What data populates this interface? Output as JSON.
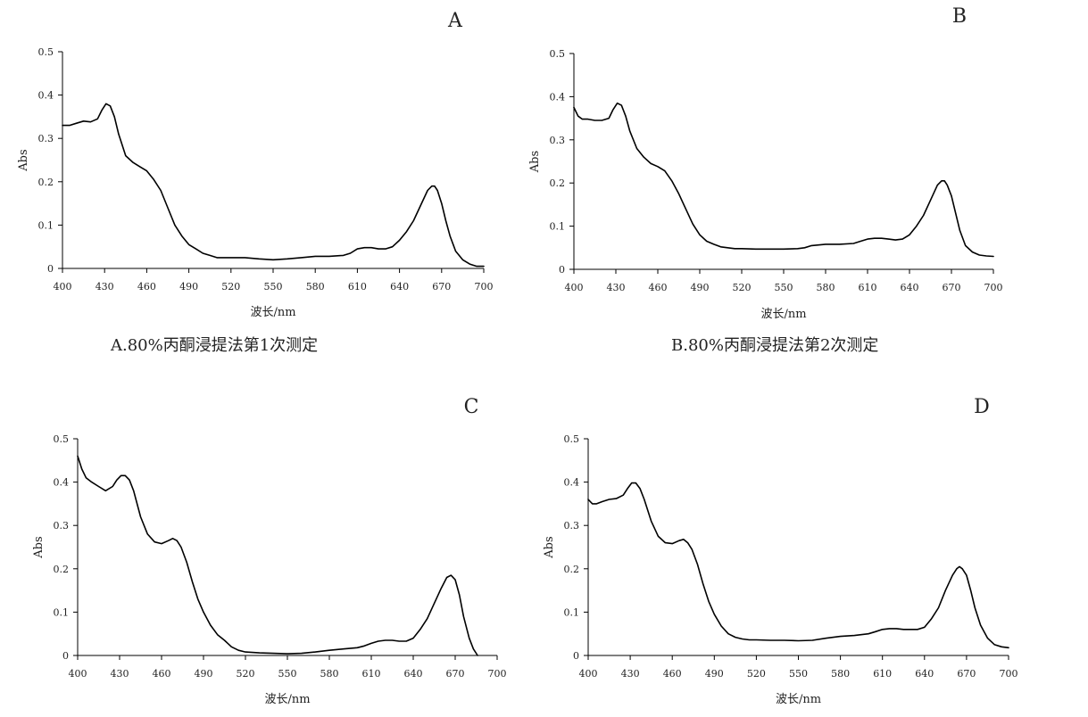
{
  "captions": {
    "a": "A.80%丙酮浸提法第1次测定",
    "b": "B.80%丙酮浸提法第2次测定"
  },
  "colors": {
    "line": "#000000",
    "axis": "#000000",
    "background": "#ffffff"
  },
  "chart_data": [
    {
      "type": "line",
      "panel_letter": "A",
      "xlabel": "波长/nm",
      "ylabel": "Abs",
      "xlim": [
        400,
        700
      ],
      "ylim": [
        0,
        0.5
      ],
      "x_ticks": [
        "400",
        "430",
        "460",
        "490",
        "520",
        "550",
        "580",
        "610",
        "640",
        "670",
        "700"
      ],
      "y_ticks": [
        "0",
        "0.1",
        "0.2",
        "0.3",
        "0.4",
        "0.5"
      ],
      "grid": false,
      "legend": "none",
      "series": [
        {
          "x": [
            400,
            405,
            410,
            415,
            420,
            425,
            428,
            431,
            434,
            437,
            440,
            445,
            450,
            455,
            460,
            465,
            470,
            475,
            480,
            485,
            490,
            495,
            500,
            505,
            510,
            515,
            520,
            530,
            540,
            550,
            560,
            570,
            580,
            590,
            600,
            605,
            610,
            615,
            620,
            625,
            630,
            635,
            640,
            645,
            650,
            655,
            660,
            663,
            665,
            667,
            670,
            673,
            676,
            680,
            685,
            690,
            695,
            700
          ],
          "y": [
            0.33,
            0.33,
            0.335,
            0.34,
            0.338,
            0.345,
            0.365,
            0.38,
            0.375,
            0.35,
            0.31,
            0.26,
            0.245,
            0.235,
            0.225,
            0.205,
            0.18,
            0.14,
            0.1,
            0.075,
            0.055,
            0.045,
            0.035,
            0.03,
            0.025,
            0.025,
            0.025,
            0.025,
            0.022,
            0.02,
            0.022,
            0.025,
            0.028,
            0.028,
            0.03,
            0.035,
            0.045,
            0.048,
            0.048,
            0.045,
            0.045,
            0.05,
            0.065,
            0.085,
            0.11,
            0.145,
            0.18,
            0.19,
            0.19,
            0.18,
            0.15,
            0.11,
            0.075,
            0.04,
            0.02,
            0.01,
            0.005,
            0.005
          ]
        }
      ]
    },
    {
      "type": "line",
      "panel_letter": "B",
      "xlabel": "波长/nm",
      "ylabel": "Abs",
      "xlim": [
        400,
        700
      ],
      "ylim": [
        0,
        0.5
      ],
      "x_ticks": [
        "400",
        "430",
        "460",
        "490",
        "520",
        "550",
        "580",
        "610",
        "640",
        "670",
        "700"
      ],
      "y_ticks": [
        "0",
        "0.1",
        "0.2",
        "0.3",
        "0.4",
        "0.5"
      ],
      "grid": false,
      "legend": "none",
      "series": [
        {
          "x": [
            400,
            403,
            406,
            410,
            415,
            420,
            425,
            428,
            431,
            434,
            437,
            440,
            445,
            450,
            455,
            460,
            465,
            470,
            475,
            480,
            485,
            490,
            495,
            500,
            505,
            510,
            515,
            520,
            530,
            540,
            550,
            560,
            565,
            570,
            580,
            590,
            600,
            605,
            610,
            615,
            620,
            625,
            630,
            635,
            640,
            645,
            650,
            655,
            660,
            663,
            665,
            667,
            670,
            673,
            676,
            680,
            685,
            690,
            695,
            700
          ],
          "y": [
            0.375,
            0.355,
            0.348,
            0.348,
            0.345,
            0.345,
            0.35,
            0.37,
            0.385,
            0.38,
            0.355,
            0.32,
            0.28,
            0.26,
            0.245,
            0.238,
            0.228,
            0.205,
            0.175,
            0.14,
            0.105,
            0.08,
            0.065,
            0.058,
            0.052,
            0.05,
            0.048,
            0.048,
            0.047,
            0.047,
            0.047,
            0.048,
            0.05,
            0.055,
            0.058,
            0.058,
            0.06,
            0.065,
            0.07,
            0.072,
            0.072,
            0.07,
            0.068,
            0.07,
            0.08,
            0.1,
            0.125,
            0.16,
            0.195,
            0.205,
            0.205,
            0.195,
            0.17,
            0.13,
            0.09,
            0.055,
            0.04,
            0.033,
            0.031,
            0.03
          ]
        }
      ]
    },
    {
      "type": "line",
      "panel_letter": "C",
      "xlabel": "波长/nm",
      "ylabel": "Abs",
      "xlim": [
        400,
        700
      ],
      "ylim": [
        0,
        0.5
      ],
      "x_ticks": [
        "400",
        "430",
        "460",
        "490",
        "520",
        "550",
        "580",
        "610",
        "640",
        "670",
        "700"
      ],
      "y_ticks": [
        "0",
        "0.1",
        "0.2",
        "0.3",
        "0.4",
        "0.5"
      ],
      "grid": false,
      "legend": "none",
      "series": [
        {
          "x": [
            400,
            403,
            406,
            410,
            415,
            420,
            425,
            428,
            431,
            434,
            437,
            440,
            445,
            450,
            455,
            460,
            465,
            468,
            471,
            474,
            478,
            482,
            486,
            490,
            495,
            500,
            505,
            510,
            515,
            520,
            530,
            540,
            550,
            560,
            570,
            580,
            590,
            600,
            605,
            610,
            615,
            620,
            625,
            630,
            635,
            640,
            645,
            650,
            655,
            660,
            664,
            667,
            670,
            673,
            676,
            680,
            683,
            686
          ],
          "y": [
            0.46,
            0.43,
            0.41,
            0.4,
            0.39,
            0.38,
            0.39,
            0.405,
            0.415,
            0.415,
            0.405,
            0.38,
            0.32,
            0.28,
            0.262,
            0.258,
            0.265,
            0.27,
            0.265,
            0.25,
            0.215,
            0.17,
            0.13,
            0.1,
            0.07,
            0.048,
            0.035,
            0.02,
            0.012,
            0.008,
            0.006,
            0.005,
            0.004,
            0.005,
            0.008,
            0.012,
            0.015,
            0.018,
            0.022,
            0.028,
            0.033,
            0.035,
            0.035,
            0.033,
            0.033,
            0.04,
            0.06,
            0.085,
            0.12,
            0.155,
            0.18,
            0.185,
            0.175,
            0.14,
            0.09,
            0.04,
            0.015,
            0.0
          ]
        }
      ]
    },
    {
      "type": "line",
      "panel_letter": "D",
      "xlabel": "波长/nm",
      "ylabel": "Abs",
      "xlim": [
        400,
        700
      ],
      "ylim": [
        0,
        0.5
      ],
      "x_ticks": [
        "400",
        "430",
        "460",
        "490",
        "520",
        "550",
        "580",
        "610",
        "640",
        "670",
        "700"
      ],
      "y_ticks": [
        "0",
        "0.1",
        "0.2",
        "0.3",
        "0.4",
        "0.5"
      ],
      "grid": false,
      "legend": "none",
      "series": [
        {
          "x": [
            400,
            403,
            406,
            410,
            415,
            420,
            425,
            428,
            431,
            434,
            437,
            440,
            445,
            450,
            455,
            460,
            465,
            468,
            471,
            474,
            478,
            482,
            486,
            490,
            495,
            500,
            505,
            510,
            515,
            520,
            530,
            540,
            550,
            560,
            570,
            580,
            590,
            600,
            605,
            610,
            615,
            620,
            625,
            630,
            635,
            640,
            645,
            650,
            655,
            660,
            663,
            665,
            667,
            670,
            673,
            676,
            680,
            685,
            690,
            695,
            700
          ],
          "y": [
            0.36,
            0.35,
            0.35,
            0.355,
            0.36,
            0.362,
            0.37,
            0.385,
            0.398,
            0.398,
            0.385,
            0.36,
            0.31,
            0.275,
            0.26,
            0.258,
            0.265,
            0.268,
            0.26,
            0.245,
            0.21,
            0.165,
            0.125,
            0.095,
            0.068,
            0.05,
            0.042,
            0.038,
            0.036,
            0.036,
            0.035,
            0.035,
            0.034,
            0.035,
            0.04,
            0.044,
            0.046,
            0.05,
            0.055,
            0.06,
            0.062,
            0.062,
            0.06,
            0.06,
            0.06,
            0.065,
            0.085,
            0.11,
            0.15,
            0.185,
            0.2,
            0.205,
            0.2,
            0.185,
            0.15,
            0.11,
            0.07,
            0.04,
            0.025,
            0.02,
            0.018
          ]
        }
      ]
    }
  ]
}
